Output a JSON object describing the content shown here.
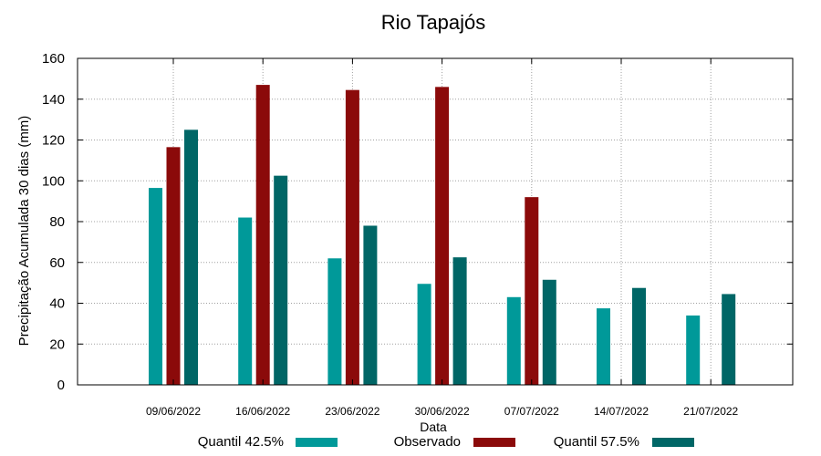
{
  "chart_data": {
    "type": "bar",
    "title": "Rio Tapajós",
    "xlabel": "Data",
    "ylabel": "Precipitação Acumulada 30 dias (mm)",
    "ylim": [
      0,
      160
    ],
    "yticks": [
      0,
      20,
      40,
      60,
      80,
      100,
      120,
      140,
      160
    ],
    "grid": true,
    "legend_position": "bottom",
    "categories": [
      "09/06/2022",
      "16/06/2022",
      "23/06/2022",
      "30/06/2022",
      "07/07/2022",
      "14/07/2022",
      "21/07/2022"
    ],
    "series": [
      {
        "name": "Quantil 42.5%",
        "color": "#009999",
        "values": [
          96.5,
          82,
          62,
          49.5,
          43,
          37.5,
          34
        ]
      },
      {
        "name": "Observado",
        "color": "#8b0a0a",
        "values": [
          116.5,
          147,
          144.5,
          146,
          92,
          null,
          null
        ]
      },
      {
        "name": "Quantil 57.5%",
        "color": "#006666",
        "values": [
          125,
          102.5,
          78,
          62.5,
          51.5,
          47.5,
          44.5
        ]
      }
    ]
  }
}
